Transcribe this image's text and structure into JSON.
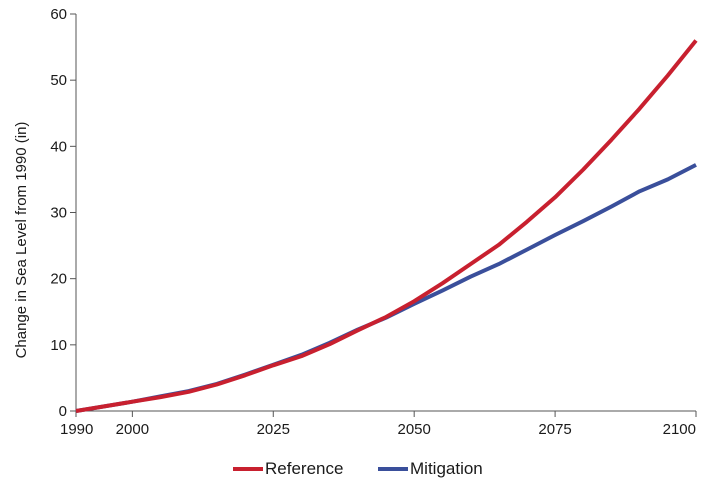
{
  "chart_data": {
    "type": "line",
    "title": "",
    "xlabel": "",
    "ylabel": "Change in Sea Level from 1990 (in)",
    "xlim": [
      1990,
      2100
    ],
    "ylim": [
      0,
      60
    ],
    "x_ticks": [
      1990,
      2000,
      2025,
      2050,
      2075,
      2100
    ],
    "y_ticks": [
      0,
      10,
      20,
      30,
      40,
      50,
      60
    ],
    "grid": false,
    "legend_position": "bottom",
    "series": [
      {
        "name": "Reference",
        "color": "#c8202f",
        "x": [
          1990,
          1995,
          2000,
          2005,
          2010,
          2015,
          2020,
          2025,
          2030,
          2035,
          2040,
          2045,
          2050,
          2055,
          2060,
          2065,
          2070,
          2075,
          2080,
          2085,
          2090,
          2095,
          2100
        ],
        "y": [
          0,
          0.7,
          1.4,
          2.1,
          2.9,
          4.0,
          5.4,
          6.9,
          8.3,
          10.1,
          12.2,
          14.2,
          16.6,
          19.3,
          22.2,
          25.1,
          28.6,
          32.3,
          36.5,
          41.0,
          45.7,
          50.7,
          56.0
        ]
      },
      {
        "name": "Mitigation",
        "color": "#3a4f9b",
        "x": [
          1990,
          1995,
          2000,
          2005,
          2010,
          2015,
          2020,
          2025,
          2030,
          2035,
          2040,
          2045,
          2050,
          2055,
          2060,
          2065,
          2070,
          2075,
          2080,
          2085,
          2090,
          2095,
          2100
        ],
        "y": [
          0,
          0.7,
          1.4,
          2.2,
          3.0,
          4.1,
          5.5,
          7.0,
          8.5,
          10.3,
          12.3,
          14.1,
          16.2,
          18.2,
          20.3,
          22.2,
          24.4,
          26.6,
          28.7,
          30.9,
          33.2,
          35.0,
          37.2
        ]
      }
    ]
  }
}
